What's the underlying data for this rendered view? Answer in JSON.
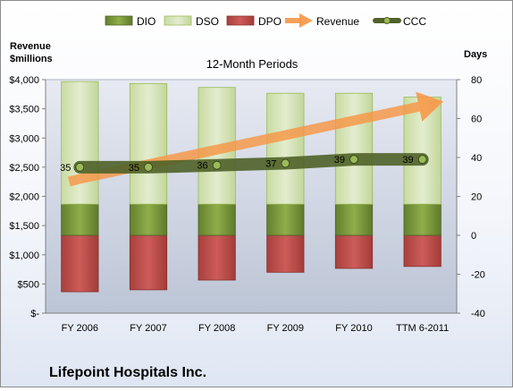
{
  "company": "Lifepoint Hospitals Inc.",
  "colors": {
    "dio": "#77933c",
    "dso": "#d7e4bd",
    "dpo": "#c0504d",
    "revenue": "#f79646",
    "ccc": "#4f6228",
    "ccc_marker": "#9bbb59"
  },
  "chart_data": {
    "type": "bar",
    "title": "12-Month Periods",
    "y_left_label_line1": "Revenue",
    "y_left_label_line2": "$millions",
    "y_right_label": "Days",
    "categories": [
      "FY 2006",
      "FY 2007",
      "FY 2008",
      "FY 2009",
      "FY 2010",
      "TTM 6-2011"
    ],
    "left_axis": {
      "min": 0,
      "max": 4000,
      "step": 500,
      "ticks": [
        "$-",
        "$500",
        "$1,000",
        "$1,500",
        "$2,000",
        "$2,500",
        "$3,000",
        "$3,500",
        "$4,000"
      ]
    },
    "right_axis": {
      "min": -40,
      "max": 80,
      "step": 20,
      "ticks": [
        "-40",
        "-20",
        "0",
        "20",
        "40",
        "60",
        "80"
      ]
    },
    "series": [
      {
        "name": "DIO",
        "kind": "bar-stack-positive",
        "values": [
          16,
          16,
          16,
          16,
          16,
          16
        ]
      },
      {
        "name": "DSO",
        "kind": "bar-stack-positive",
        "values": [
          63,
          62,
          60,
          57,
          57,
          55
        ]
      },
      {
        "name": "DPO",
        "kind": "bar-negative",
        "values": [
          -29,
          -28,
          -23,
          -19,
          -17,
          -16
        ]
      },
      {
        "name": "Revenue",
        "kind": "arrow-line",
        "axis": "left",
        "values": [
          2300,
          2550,
          2800,
          3050,
          3300,
          3550
        ]
      },
      {
        "name": "CCC",
        "kind": "line-with-labels",
        "axis": "right",
        "values": [
          35,
          35,
          36,
          37,
          39,
          39
        ],
        "labels": [
          "35",
          "35",
          "36",
          "37",
          "39",
          "39"
        ]
      }
    ],
    "grid": false,
    "legend_position": "top"
  }
}
